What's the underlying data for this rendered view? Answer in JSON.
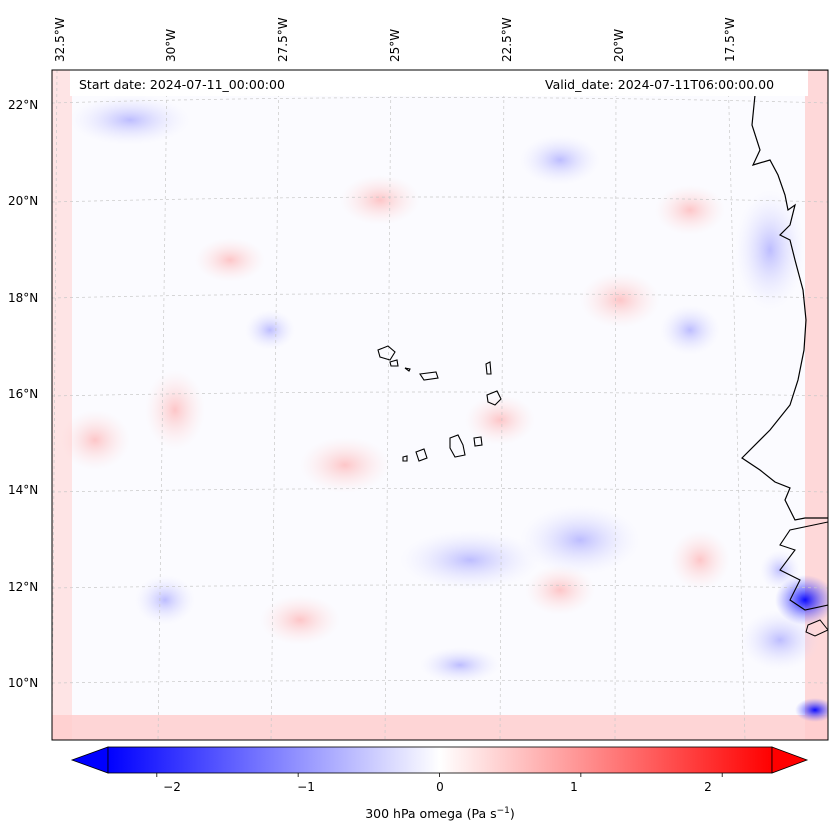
{
  "map": {
    "start_date": "Start date: 2024-07-11_00:00:00",
    "valid_date": "Valid_date: 2024-07-11T06:00:00.00",
    "longitude_labels": [
      "32.5°W",
      "30°W",
      "27.5°W",
      "25°W",
      "22.5°W",
      "20°W",
      "17.5°W"
    ],
    "latitude_labels": [
      "22°N",
      "20°N",
      "18°N",
      "16°N",
      "14°N",
      "12°N",
      "10°N"
    ],
    "variable": "300 hPa omega (Pa s",
    "variable_units_exponent": "−1",
    "variable_close": ")",
    "colormap": {
      "negative": "#0000ff",
      "neutral": "#ffffff",
      "positive": "#ff0000"
    }
  },
  "colorbar": {
    "ticks": [
      "−2",
      "−1",
      "0",
      "1",
      "2"
    ],
    "tick_values": [
      -2,
      -1,
      0,
      1,
      2
    ],
    "range": [
      -2.6,
      2.6
    ]
  }
}
